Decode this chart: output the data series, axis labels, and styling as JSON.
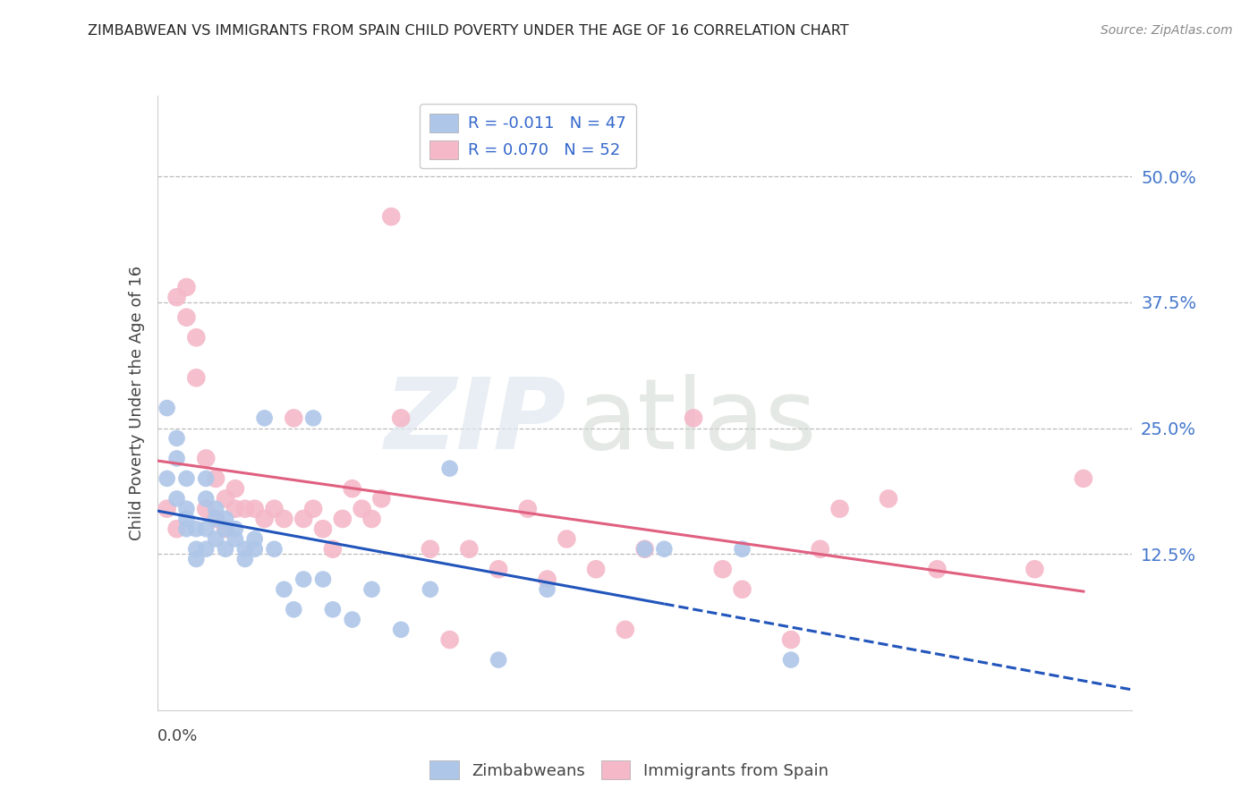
{
  "title": "ZIMBABWEAN VS IMMIGRANTS FROM SPAIN CHILD POVERTY UNDER THE AGE OF 16 CORRELATION CHART",
  "source": "Source: ZipAtlas.com",
  "ylabel": "Child Poverty Under the Age of 16",
  "xlim": [
    0.0,
    0.1
  ],
  "ylim": [
    -0.03,
    0.58
  ],
  "yticks": [
    0.125,
    0.25,
    0.375,
    0.5
  ],
  "ytick_labels": [
    "12.5%",
    "25.0%",
    "37.5%",
    "50.0%"
  ],
  "legend_r1": "R = -0.011   N = 47",
  "legend_r2": "R = 0.070   N = 52",
  "zim_color": "#aec6e8",
  "spain_color": "#f4b8c8",
  "zim_line_color": "#2255bb",
  "spain_line_color": "#e06080",
  "background_color": "#ffffff",
  "grid_color": "#bbbbbb",
  "tick_color": "#4477cc",
  "zim_x": [
    0.001,
    0.001,
    0.002,
    0.002,
    0.002,
    0.003,
    0.003,
    0.003,
    0.003,
    0.004,
    0.004,
    0.004,
    0.005,
    0.005,
    0.005,
    0.005,
    0.006,
    0.006,
    0.006,
    0.007,
    0.007,
    0.007,
    0.008,
    0.008,
    0.009,
    0.009,
    0.01,
    0.01,
    0.011,
    0.012,
    0.013,
    0.014,
    0.015,
    0.016,
    0.017,
    0.018,
    0.02,
    0.022,
    0.025,
    0.028,
    0.03,
    0.035,
    0.04,
    0.05,
    0.052,
    0.06,
    0.065
  ],
  "zim_y": [
    0.27,
    0.2,
    0.24,
    0.22,
    0.18,
    0.2,
    0.17,
    0.16,
    0.15,
    0.15,
    0.13,
    0.12,
    0.2,
    0.18,
    0.15,
    0.13,
    0.17,
    0.16,
    0.14,
    0.16,
    0.15,
    0.13,
    0.15,
    0.14,
    0.13,
    0.12,
    0.14,
    0.13,
    0.26,
    0.13,
    0.09,
    0.07,
    0.1,
    0.26,
    0.1,
    0.07,
    0.06,
    0.09,
    0.05,
    0.09,
    0.21,
    0.02,
    0.09,
    0.13,
    0.13,
    0.13,
    0.02
  ],
  "spain_x": [
    0.001,
    0.002,
    0.002,
    0.003,
    0.003,
    0.004,
    0.004,
    0.005,
    0.005,
    0.006,
    0.006,
    0.007,
    0.007,
    0.008,
    0.008,
    0.009,
    0.01,
    0.011,
    0.012,
    0.013,
    0.014,
    0.015,
    0.016,
    0.017,
    0.018,
    0.019,
    0.02,
    0.021,
    0.022,
    0.023,
    0.024,
    0.025,
    0.028,
    0.03,
    0.032,
    0.035,
    0.038,
    0.04,
    0.042,
    0.045,
    0.048,
    0.05,
    0.055,
    0.058,
    0.06,
    0.065,
    0.068,
    0.07,
    0.075,
    0.08,
    0.09,
    0.095
  ],
  "spain_y": [
    0.17,
    0.38,
    0.15,
    0.39,
    0.36,
    0.34,
    0.3,
    0.17,
    0.22,
    0.2,
    0.16,
    0.18,
    0.15,
    0.19,
    0.17,
    0.17,
    0.17,
    0.16,
    0.17,
    0.16,
    0.26,
    0.16,
    0.17,
    0.15,
    0.13,
    0.16,
    0.19,
    0.17,
    0.16,
    0.18,
    0.46,
    0.26,
    0.13,
    0.04,
    0.13,
    0.11,
    0.17,
    0.1,
    0.14,
    0.11,
    0.05,
    0.13,
    0.26,
    0.11,
    0.09,
    0.04,
    0.13,
    0.17,
    0.18,
    0.11,
    0.11,
    0.2
  ]
}
